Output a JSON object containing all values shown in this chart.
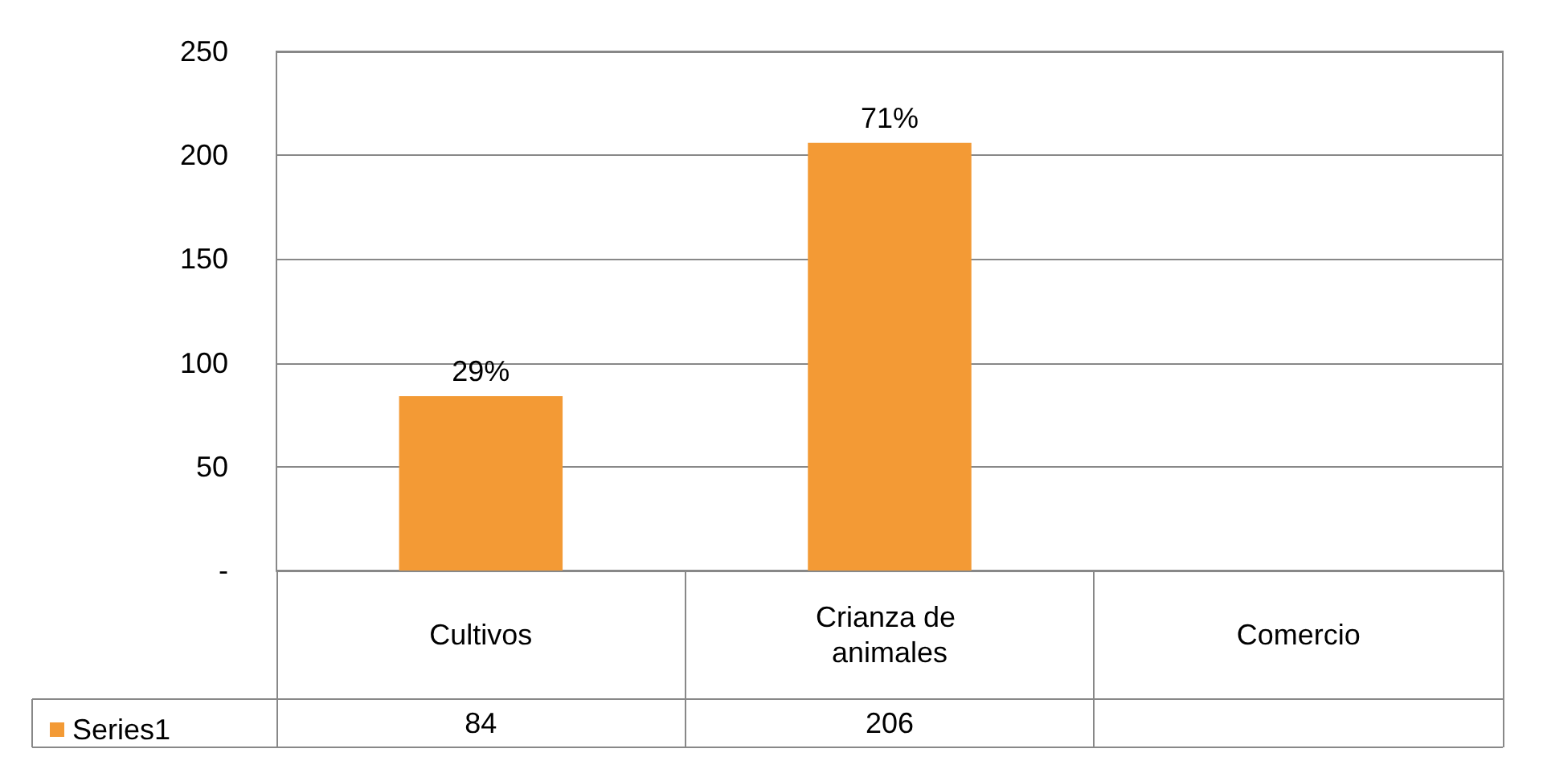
{
  "chart_data": {
    "type": "bar",
    "categories": [
      "Cultivos",
      "Crianza de animales",
      "Comercio"
    ],
    "series": [
      {
        "name": "Series1",
        "color": "#f39a35",
        "values": [
          84,
          206,
          null
        ],
        "value_labels": [
          "84",
          "206",
          null
        ]
      }
    ],
    "annotations": [
      {
        "text": "29%",
        "x": "Cultivos",
        "y": 84
      },
      {
        "text": "71%",
        "x": "Crianza de animales",
        "y": 206
      }
    ],
    "ylim": [
      0,
      250
    ],
    "yticks": [
      {
        "value": 0,
        "label": "-"
      },
      50,
      100,
      150,
      200,
      250
    ],
    "grid": "y",
    "legend": "bottom left"
  }
}
